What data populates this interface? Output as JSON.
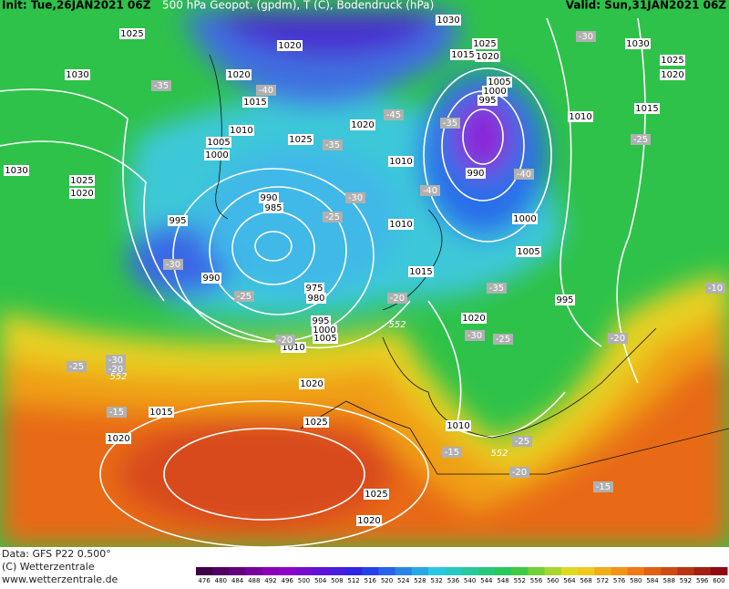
{
  "header": {
    "init": "Init: Tue,26JAN2021 06Z",
    "title": "500 hPa Geopot. (gpdm), T (C), Bodendruck (hPa)",
    "valid": "Valid: Sun,31JAN2021 06Z"
  },
  "map": {
    "isobar_labels": [
      "1025",
      "1030",
      "1020",
      "1030",
      "1020",
      "1025",
      "1015",
      "1020",
      "1030",
      "1025",
      "1020",
      "1005",
      "1000",
      "995",
      "1015",
      "1010",
      "1015",
      "1020",
      "1010",
      "1025",
      "1005",
      "1000",
      "1010",
      "1030",
      "990",
      "1025",
      "1020",
      "990",
      "985",
      "1000",
      "995",
      "1010",
      "1005",
      "1015",
      "990",
      "975",
      "980",
      "995",
      "1020",
      "995",
      "1000",
      "1005",
      "1010",
      "1020",
      "1015",
      "1025",
      "1010",
      "1020",
      "1025",
      "1020"
    ],
    "temperature_labels": [
      "-35",
      "-40",
      "-45",
      "-35",
      "-35",
      "-25",
      "-40",
      "-40",
      "-30",
      "-25",
      "-30",
      "-25",
      "-20",
      "-35",
      "-30",
      "-25",
      "-20",
      "-20",
      "-10",
      "-30",
      "-25",
      "-20",
      "-15",
      "-15",
      "-20",
      "-15",
      "-25",
      "-30"
    ],
    "height_labels": [
      "552",
      "552",
      "552"
    ]
  },
  "colorbar": {
    "ticks": [
      476,
      480,
      484,
      488,
      492,
      496,
      500,
      504,
      508,
      512,
      516,
      520,
      524,
      528,
      532,
      536,
      540,
      544,
      548,
      552,
      556,
      560,
      564,
      568,
      572,
      576,
      580,
      584,
      588,
      592,
      596,
      600
    ]
  },
  "footer": {
    "data": "Data: GFS P22 0.500°",
    "copyright": "(C) Wetterzentrale",
    "url": "www.wetterzentrale.de"
  }
}
